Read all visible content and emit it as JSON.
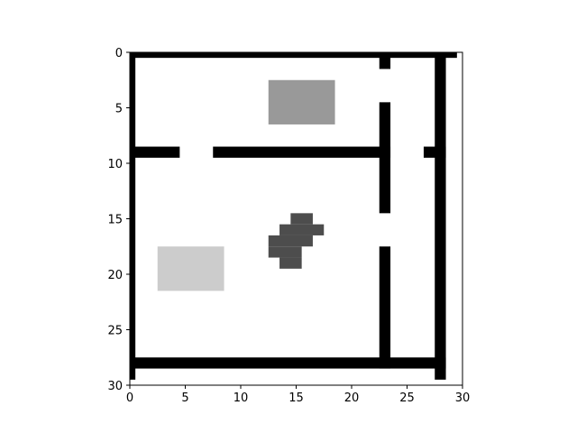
{
  "chart_data": {
    "type": "heatmap",
    "title": "",
    "xlabel": "",
    "ylabel": "",
    "grid_size": [
      30,
      30
    ],
    "xlim": [
      0,
      30
    ],
    "ylim": [
      30,
      0
    ],
    "x_ticks": [
      "0",
      "5",
      "10",
      "15",
      "20",
      "25",
      "30"
    ],
    "y_ticks": [
      "0",
      "5",
      "10",
      "15",
      "20",
      "25",
      "30"
    ],
    "colormap": "gray",
    "colors": {
      "wall": "#000000",
      "floor": "#ffffff",
      "dark_object": "#4d4d4d",
      "mid_object": "#999999",
      "light_object": "#cccccc"
    },
    "cells": [
      {
        "kind": "wall",
        "col": 0,
        "row": 0,
        "cols": 30,
        "rows": 1
      },
      {
        "kind": "wall",
        "col": 0,
        "row": 0,
        "cols": 1,
        "rows": 30
      },
      {
        "kind": "wall",
        "col": 28,
        "row": 0,
        "cols": 1,
        "rows": 30
      },
      {
        "kind": "wall",
        "col": 0,
        "row": 28,
        "cols": 29,
        "rows": 1
      },
      {
        "kind": "wall",
        "col": 23,
        "row": 0,
        "cols": 1,
        "rows": 2
      },
      {
        "kind": "wall",
        "col": 23,
        "row": 5,
        "cols": 1,
        "rows": 10
      },
      {
        "kind": "wall",
        "col": 23,
        "row": 18,
        "cols": 1,
        "rows": 11
      },
      {
        "kind": "wall",
        "col": 0,
        "row": 9,
        "cols": 5,
        "rows": 1
      },
      {
        "kind": "wall",
        "col": 8,
        "row": 9,
        "cols": 16,
        "rows": 1
      },
      {
        "kind": "wall",
        "col": 27,
        "row": 9,
        "cols": 2,
        "rows": 1
      },
      {
        "kind": "mid_object",
        "col": 13,
        "row": 3,
        "cols": 6,
        "rows": 4
      },
      {
        "kind": "light_object",
        "col": 3,
        "row": 18,
        "cols": 6,
        "rows": 4
      },
      {
        "kind": "dark_object",
        "col": 15,
        "row": 15,
        "cols": 2,
        "rows": 1
      },
      {
        "kind": "dark_object",
        "col": 14,
        "row": 16,
        "cols": 4,
        "rows": 1
      },
      {
        "kind": "dark_object",
        "col": 13,
        "row": 17,
        "cols": 4,
        "rows": 1
      },
      {
        "kind": "dark_object",
        "col": 13,
        "row": 18,
        "cols": 3,
        "rows": 1
      },
      {
        "kind": "dark_object",
        "col": 14,
        "row": 19,
        "cols": 2,
        "rows": 1
      }
    ]
  }
}
